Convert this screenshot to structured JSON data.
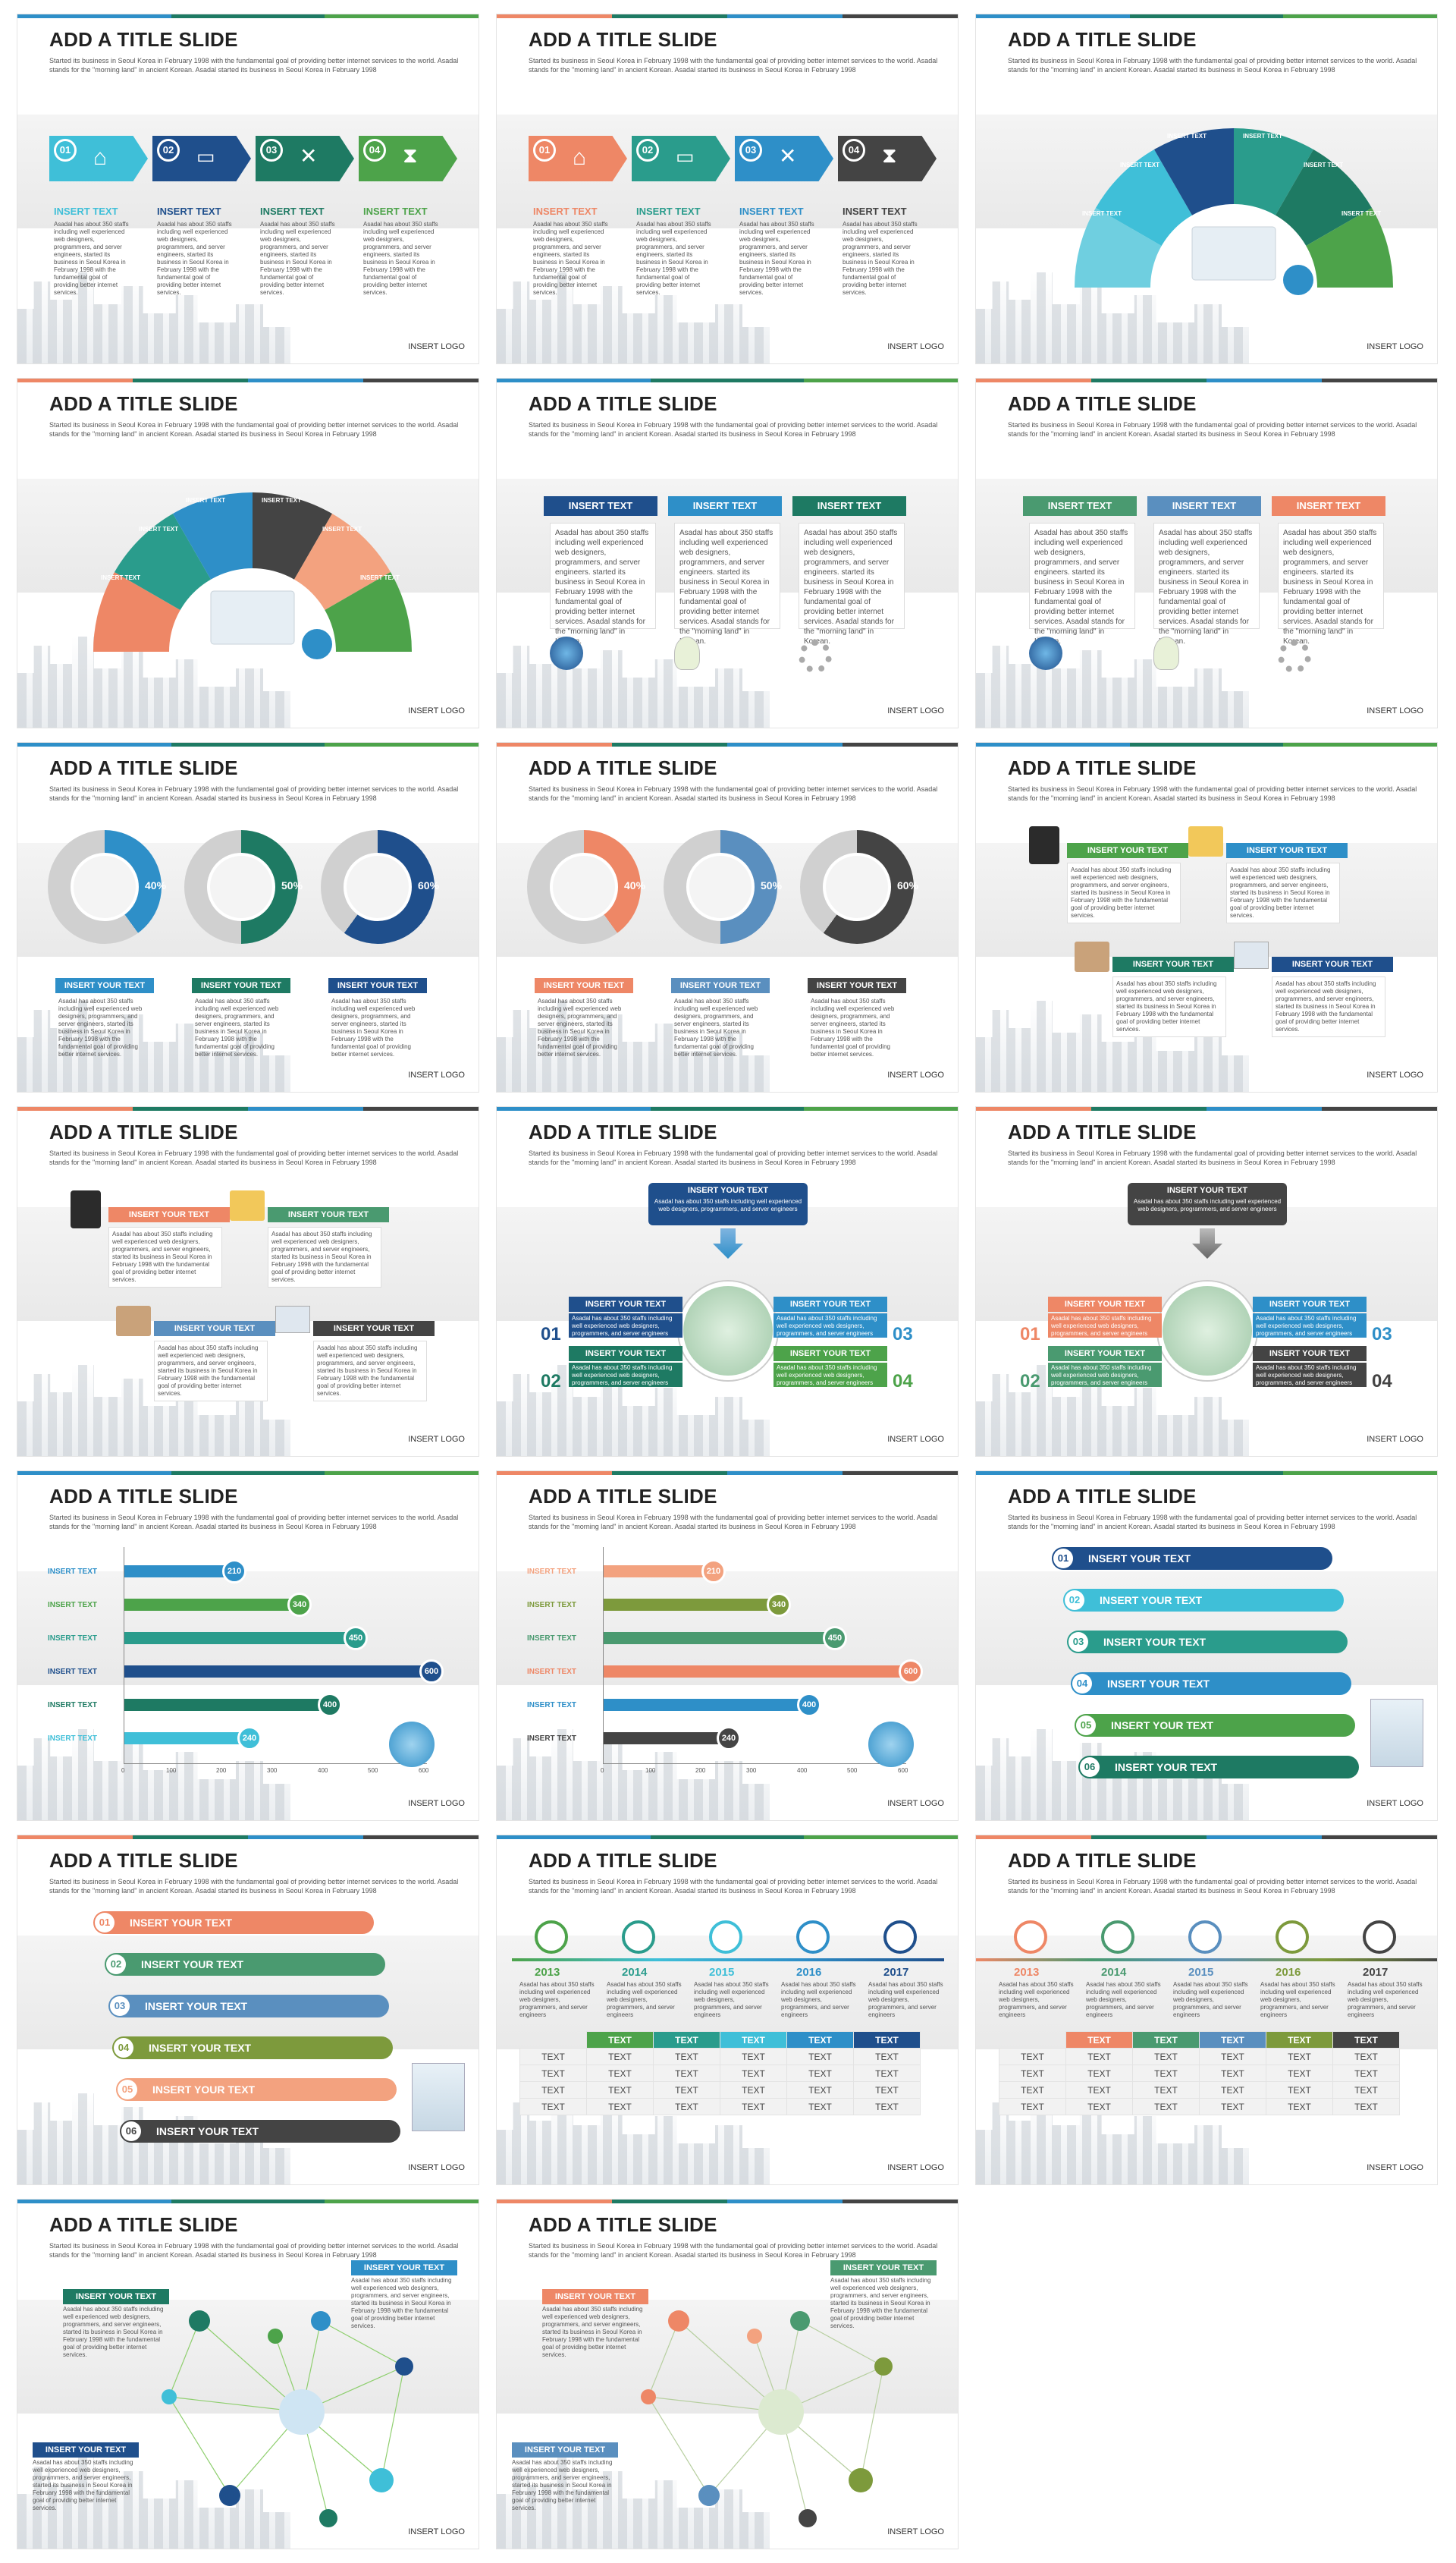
{
  "slide_title": "ADD A TITLE SLIDE",
  "subtitle": "Started its business in Seoul Korea in February 1998 with the fundamental goal of providing better internet services to the world. Asadal stands for the \"morning land\" in ancient Korean. Asadal started its business in Seoul Korea in February 1998",
  "logo": "INSERT LOGO",
  "insert_text": "INSERT TEXT",
  "insert_your_text": "INSERT YOUR TEXT",
  "text_cell": "TEXT",
  "body_short": "Asadal has about 350 staffs including well experienced web designers, programmers, and server engineers, started its business in Seoul Korea in February 1998 with the fundamental goal of providing better internet services.",
  "body_mid": "Asadal has about 350 staffs including well experienced web designers, programmers, and server engineers. started its business in Seoul Korea in February 1998 with the fundamental goal of providing better internet services. Asadal stands for the \"morning land\" in Korean.",
  "body_tiny": "Asadal has about 350 staffs including well experienced web designers, programmers, and server engineers",
  "nums": [
    "01",
    "02",
    "03",
    "04",
    "05",
    "06"
  ],
  "percents": [
    "40%",
    "50%",
    "60%"
  ],
  "bar_values": [
    "210",
    "340",
    "450",
    "600",
    "400",
    "240"
  ],
  "axis_ticks": [
    "0",
    "100",
    "200",
    "300",
    "400",
    "500",
    "600"
  ],
  "years": [
    "2013",
    "2014",
    "2015",
    "2016",
    "2017"
  ],
  "colors": {
    "blue": "#2e8fc8",
    "navy": "#1f4f8c",
    "green": "#1e7a63",
    "lime": "#4da34a",
    "cyan": "#3fbfd8",
    "salmon": "#ee8766",
    "olive": "#7d9a3c",
    "dark": "#444444",
    "teal": "#2a9c8c"
  }
}
